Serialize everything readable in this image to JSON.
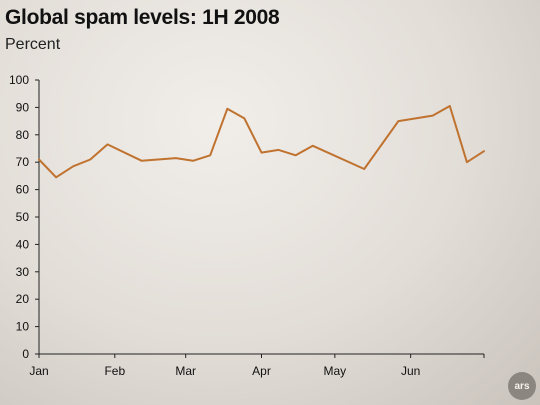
{
  "chart_data": {
    "type": "line",
    "title": "Global spam levels: 1H 2008",
    "subtitle": "Percent",
    "xlabel": "",
    "ylabel": "",
    "ylim": [
      0,
      100
    ],
    "yticks": [
      0,
      10,
      20,
      30,
      40,
      50,
      60,
      70,
      80,
      90,
      100
    ],
    "x_tick_labels": [
      "Jan",
      "Feb",
      "Mar",
      "Apr",
      "May",
      "Jun"
    ],
    "xlim": [
      "2008-01-01",
      "2008-07-01"
    ],
    "grid": false,
    "legend": "none",
    "series": [
      {
        "color": "#c0722f",
        "points": [
          [
            "2008-01-01",
            71
          ],
          [
            "2008-01-08",
            64.5
          ],
          [
            "2008-01-15",
            68.5
          ],
          [
            "2008-01-22",
            71
          ],
          [
            "2008-01-29",
            76.5
          ],
          [
            "2008-02-12",
            70.5
          ],
          [
            "2008-02-26",
            71.5
          ],
          [
            "2008-03-04",
            70.5
          ],
          [
            "2008-03-11",
            72.5
          ],
          [
            "2008-03-18",
            89.5
          ],
          [
            "2008-03-25",
            86
          ],
          [
            "2008-04-01",
            73.5
          ],
          [
            "2008-04-08",
            74.5
          ],
          [
            "2008-04-15",
            72.5
          ],
          [
            "2008-04-22",
            76
          ],
          [
            "2008-05-13",
            67.5
          ],
          [
            "2008-05-27",
            85
          ],
          [
            "2008-06-10",
            87
          ],
          [
            "2008-06-17",
            90.5
          ],
          [
            "2008-06-24",
            70
          ],
          [
            "2008-07-01",
            74
          ]
        ]
      }
    ]
  },
  "logo_text": "ars"
}
